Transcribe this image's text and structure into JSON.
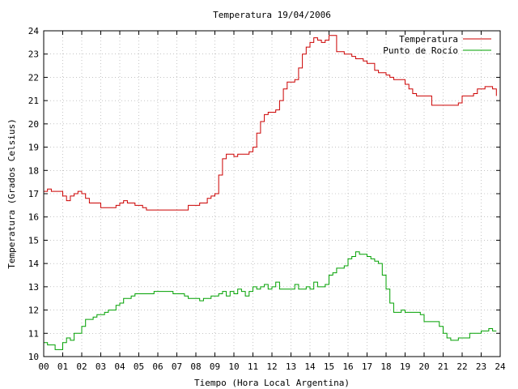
{
  "chart_data": {
    "type": "line",
    "title": "Temperatura 19/04/2006",
    "xlabel": "Tiempo (Hora Local Argentina)",
    "ylabel": "Temperatura (Grados Celsius)",
    "xlim": [
      0,
      24
    ],
    "ylim": [
      10,
      24
    ],
    "x_tick_labels": [
      "00",
      "01",
      "02",
      "03",
      "04",
      "05",
      "06",
      "07",
      "08",
      "09",
      "10",
      "11",
      "12",
      "13",
      "14",
      "15",
      "16",
      "17",
      "18",
      "19",
      "20",
      "21",
      "22",
      "23",
      "24"
    ],
    "y_tick_labels": [
      "10",
      "11",
      "12",
      "13",
      "14",
      "15",
      "16",
      "17",
      "18",
      "19",
      "20",
      "21",
      "22",
      "23",
      "24"
    ],
    "grid": true,
    "legend_position": "top-right",
    "series": [
      {
        "name": "Temperatura",
        "color": "#cc0000",
        "x": [
          0.0,
          0.2,
          0.4,
          0.6,
          0.8,
          1.0,
          1.2,
          1.4,
          1.6,
          1.8,
          2.0,
          2.2,
          2.4,
          2.6,
          2.8,
          3.0,
          3.2,
          3.4,
          3.6,
          3.8,
          4.0,
          4.2,
          4.4,
          4.6,
          4.8,
          5.0,
          5.2,
          5.4,
          5.6,
          5.8,
          6.0,
          6.2,
          6.4,
          6.6,
          6.8,
          7.0,
          7.2,
          7.4,
          7.6,
          7.8,
          8.0,
          8.2,
          8.4,
          8.6,
          8.8,
          9.0,
          9.2,
          9.4,
          9.6,
          9.8,
          10.0,
          10.2,
          10.4,
          10.6,
          10.8,
          11.0,
          11.2,
          11.4,
          11.6,
          11.8,
          12.0,
          12.2,
          12.4,
          12.6,
          12.8,
          13.0,
          13.2,
          13.4,
          13.6,
          13.8,
          14.0,
          14.2,
          14.4,
          14.6,
          14.8,
          15.0,
          15.2,
          15.4,
          15.6,
          15.8,
          16.0,
          16.2,
          16.4,
          16.6,
          16.8,
          17.0,
          17.2,
          17.4,
          17.6,
          17.8,
          18.0,
          18.2,
          18.4,
          18.6,
          18.8,
          19.0,
          19.2,
          19.4,
          19.6,
          19.8,
          20.0,
          20.2,
          20.4,
          20.6,
          20.8,
          21.0,
          21.2,
          21.4,
          21.6,
          21.8,
          22.0,
          22.2,
          22.4,
          22.6,
          22.8,
          23.0,
          23.2,
          23.4,
          23.6,
          23.8
        ],
        "values": [
          17.1,
          17.2,
          17.1,
          17.1,
          17.1,
          16.9,
          16.7,
          16.9,
          17.0,
          17.1,
          17.0,
          16.8,
          16.6,
          16.6,
          16.6,
          16.4,
          16.4,
          16.4,
          16.4,
          16.5,
          16.6,
          16.7,
          16.6,
          16.6,
          16.5,
          16.5,
          16.4,
          16.3,
          16.3,
          16.3,
          16.3,
          16.3,
          16.3,
          16.3,
          16.3,
          16.3,
          16.3,
          16.3,
          16.5,
          16.5,
          16.5,
          16.6,
          16.6,
          16.8,
          16.9,
          17.0,
          17.8,
          18.5,
          18.7,
          18.7,
          18.6,
          18.7,
          18.7,
          18.7,
          18.8,
          19.0,
          19.6,
          20.1,
          20.4,
          20.5,
          20.5,
          20.6,
          21.0,
          21.5,
          21.8,
          21.8,
          21.9,
          22.4,
          23.0,
          23.3,
          23.5,
          23.7,
          23.6,
          23.5,
          23.6,
          23.8,
          23.8,
          23.1,
          23.1,
          23.0,
          23.0,
          22.9,
          22.8,
          22.8,
          22.7,
          22.6,
          22.6,
          22.3,
          22.2,
          22.2,
          22.1,
          22.0,
          21.9,
          21.9,
          21.9,
          21.7,
          21.5,
          21.3,
          21.2,
          21.2,
          21.2,
          21.2,
          20.8,
          20.8,
          20.8,
          20.8,
          20.8,
          20.8,
          20.8,
          20.9,
          21.2,
          21.2,
          21.2,
          21.3,
          21.5,
          21.5,
          21.6,
          21.6,
          21.5,
          21.2
        ]
      },
      {
        "name": "Punto de Rocío",
        "color": "#00a000",
        "x": [
          0.0,
          0.2,
          0.4,
          0.6,
          0.8,
          1.0,
          1.2,
          1.4,
          1.6,
          1.8,
          2.0,
          2.2,
          2.4,
          2.6,
          2.8,
          3.0,
          3.2,
          3.4,
          3.6,
          3.8,
          4.0,
          4.2,
          4.4,
          4.6,
          4.8,
          5.0,
          5.2,
          5.4,
          5.6,
          5.8,
          6.0,
          6.2,
          6.4,
          6.6,
          6.8,
          7.0,
          7.2,
          7.4,
          7.6,
          7.8,
          8.0,
          8.2,
          8.4,
          8.6,
          8.8,
          9.0,
          9.2,
          9.4,
          9.6,
          9.8,
          10.0,
          10.2,
          10.4,
          10.6,
          10.8,
          11.0,
          11.2,
          11.4,
          11.6,
          11.8,
          12.0,
          12.2,
          12.4,
          12.6,
          12.8,
          13.0,
          13.2,
          13.4,
          13.6,
          13.8,
          14.0,
          14.2,
          14.4,
          14.6,
          14.8,
          15.0,
          15.2,
          15.4,
          15.6,
          15.8,
          16.0,
          16.2,
          16.4,
          16.6,
          16.8,
          17.0,
          17.2,
          17.4,
          17.6,
          17.8,
          18.0,
          18.2,
          18.4,
          18.6,
          18.8,
          19.0,
          19.2,
          19.4,
          19.6,
          19.8,
          20.0,
          20.2,
          20.4,
          20.6,
          20.8,
          21.0,
          21.2,
          21.4,
          21.6,
          21.8,
          22.0,
          22.2,
          22.4,
          22.6,
          22.8,
          23.0,
          23.2,
          23.4,
          23.6,
          23.8
        ],
        "values": [
          10.6,
          10.5,
          10.5,
          10.3,
          10.3,
          10.6,
          10.8,
          10.7,
          11.0,
          11.0,
          11.3,
          11.6,
          11.6,
          11.7,
          11.8,
          11.8,
          11.9,
          12.0,
          12.0,
          12.2,
          12.3,
          12.5,
          12.5,
          12.6,
          12.7,
          12.7,
          12.7,
          12.7,
          12.7,
          12.8,
          12.8,
          12.8,
          12.8,
          12.8,
          12.7,
          12.7,
          12.7,
          12.6,
          12.5,
          12.5,
          12.5,
          12.4,
          12.5,
          12.5,
          12.6,
          12.6,
          12.7,
          12.8,
          12.6,
          12.8,
          12.7,
          12.9,
          12.8,
          12.6,
          12.8,
          13.0,
          12.9,
          13.0,
          13.1,
          12.9,
          13.0,
          13.2,
          12.9,
          12.9,
          12.9,
          12.9,
          13.1,
          12.9,
          12.9,
          13.0,
          12.9,
          13.2,
          13.0,
          13.0,
          13.1,
          13.5,
          13.6,
          13.8,
          13.8,
          13.9,
          14.2,
          14.3,
          14.5,
          14.4,
          14.4,
          14.3,
          14.2,
          14.1,
          14.0,
          13.5,
          12.9,
          12.3,
          11.9,
          11.9,
          12.0,
          11.9,
          11.9,
          11.9,
          11.9,
          11.8,
          11.5,
          11.5,
          11.5,
          11.5,
          11.3,
          11.0,
          10.8,
          10.7,
          10.7,
          10.8,
          10.8,
          10.8,
          11.0,
          11.0,
          11.0,
          11.1,
          11.1,
          11.2,
          11.1,
          11.1
        ]
      }
    ]
  }
}
